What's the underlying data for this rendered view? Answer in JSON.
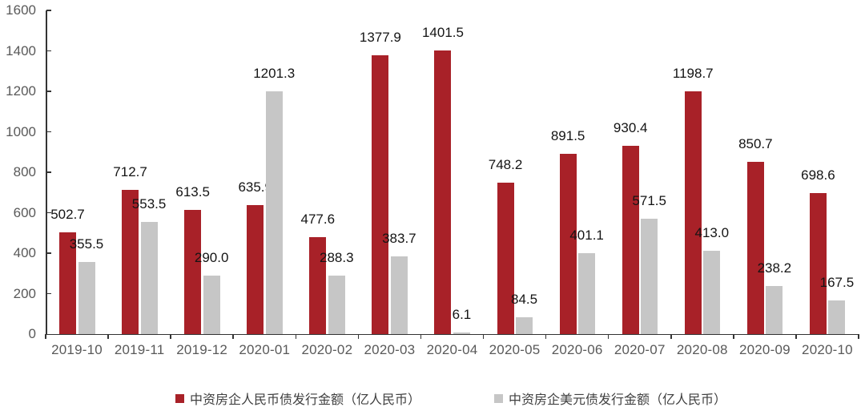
{
  "chart_data": {
    "type": "bar",
    "title": "",
    "xlabel": "",
    "ylabel": "",
    "categories": [
      "2019-10",
      "2019-11",
      "2019-12",
      "2020-01",
      "2020-02",
      "2020-03",
      "2020-04",
      "2020-05",
      "2020-06",
      "2020-07",
      "2020-08",
      "2020-09",
      "2020-10"
    ],
    "series": [
      {
        "name": "中资房企人民币债发行金额（亿人民币）",
        "color": "#A82128",
        "values": [
          502.7,
          712.7,
          613.5,
          635.9,
          477.6,
          1377.9,
          1401.5,
          748.2,
          891.5,
          930.4,
          1198.7,
          850.7,
          698.6
        ]
      },
      {
        "name": "中资房企美元债发行金额（亿人民币）",
        "color": "#C6C6C6",
        "values": [
          355.5,
          553.5,
          290.0,
          1201.3,
          288.3,
          383.7,
          6.1,
          84.5,
          401.1,
          571.5,
          413.0,
          238.2,
          167.5
        ]
      }
    ],
    "ylim": [
      0,
      1600
    ],
    "yticks": [
      0,
      200,
      400,
      600,
      800,
      1000,
      1200,
      1400,
      1600
    ],
    "grid": false,
    "data_labels": true,
    "data_label_decimals": 1,
    "legend_position": "bottom"
  },
  "colors": {
    "axis_line": "#333333",
    "axis_text": "#595959",
    "data_label_text": "#141414",
    "background": "#FFFFFF"
  }
}
